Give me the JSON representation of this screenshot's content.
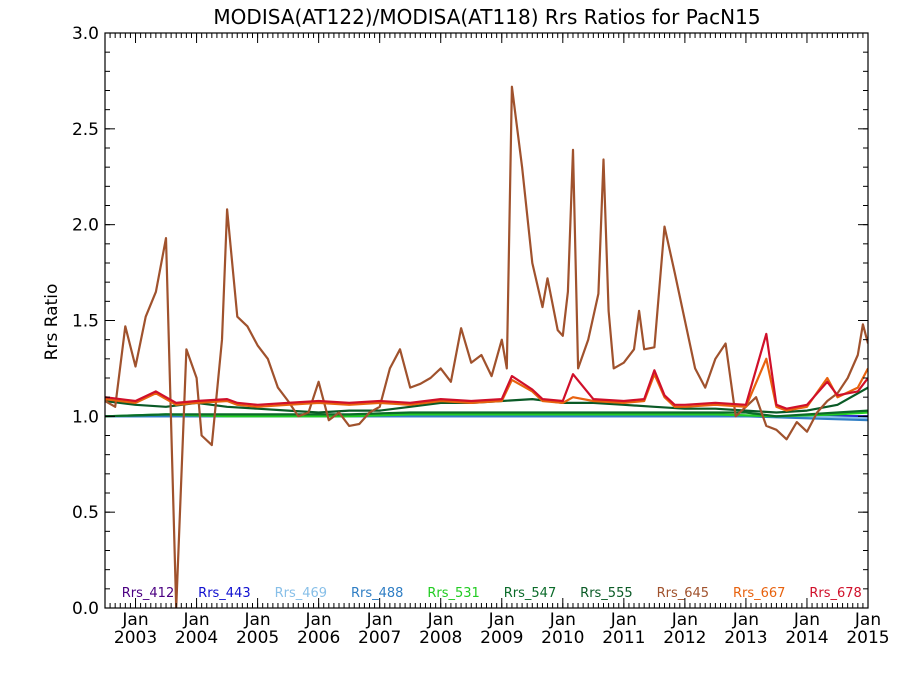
{
  "chart_data": {
    "type": "line",
    "title": "MODISA(AT122)/MODISA(AT118)  Rrs Ratios for PacN15",
    "xlabel": "",
    "ylabel": "Rrs Ratio",
    "ylim": [
      0.0,
      3.0
    ],
    "xlim": [
      "2002-07-01",
      "2015-01-01"
    ],
    "yticks": [
      "0.0",
      "0.5",
      "1.0",
      "1.5",
      "2.0",
      "2.5",
      "3.0"
    ],
    "xticks": [
      {
        "top": "Jan",
        "bottom": "2003"
      },
      {
        "top": "Jan",
        "bottom": "2004"
      },
      {
        "top": "Jan",
        "bottom": "2005"
      },
      {
        "top": "Jan",
        "bottom": "2006"
      },
      {
        "top": "Jan",
        "bottom": "2007"
      },
      {
        "top": "Jan",
        "bottom": "2008"
      },
      {
        "top": "Jan",
        "bottom": "2009"
      },
      {
        "top": "Jan",
        "bottom": "2010"
      },
      {
        "top": "Jan",
        "bottom": "2011"
      },
      {
        "top": "Jan",
        "bottom": "2012"
      },
      {
        "top": "Jan",
        "bottom": "2013"
      },
      {
        "top": "Jan",
        "bottom": "2014"
      },
      {
        "top": "Jan",
        "bottom": "2015"
      }
    ],
    "grid": false,
    "legend_position": "bottom, inside plot",
    "series": [
      {
        "name": "Rrs_412",
        "color": "#4b0082",
        "points": [
          [
            "2002-07",
            1.0
          ],
          [
            "2005-01",
            1.0
          ],
          [
            "2008-01",
            1.0
          ],
          [
            "2011-01",
            1.0
          ],
          [
            "2013-01",
            1.0
          ],
          [
            "2014-01",
            1.0
          ],
          [
            "2015-01",
            1.0
          ]
        ]
      },
      {
        "name": "Rrs_443",
        "color": "#1010d0",
        "points": [
          [
            "2002-07",
            1.0
          ],
          [
            "2005-01",
            1.0
          ],
          [
            "2008-01",
            1.0
          ],
          [
            "2011-01",
            1.0
          ],
          [
            "2013-01",
            1.0
          ],
          [
            "2014-01",
            1.0
          ],
          [
            "2015-01",
            1.0
          ]
        ]
      },
      {
        "name": "Rrs_469",
        "color": "#87bfe8",
        "points": [
          [
            "2002-07",
            1.0
          ],
          [
            "2006-01",
            1.0
          ],
          [
            "2010-01",
            1.0
          ],
          [
            "2012-01",
            1.0
          ],
          [
            "2013-01",
            1.0
          ],
          [
            "2014-01",
            1.0
          ],
          [
            "2015-01",
            0.99
          ]
        ]
      },
      {
        "name": "Rrs_488",
        "color": "#2f7ec4",
        "points": [
          [
            "2002-07",
            1.0
          ],
          [
            "2006-01",
            1.0
          ],
          [
            "2010-01",
            1.0
          ],
          [
            "2012-01",
            1.0
          ],
          [
            "2013-01",
            1.0
          ],
          [
            "2014-01",
            0.99
          ],
          [
            "2015-01",
            0.98
          ]
        ]
      },
      {
        "name": "Rrs_531",
        "color": "#22cc22",
        "points": [
          [
            "2002-07",
            1.0
          ],
          [
            "2003-07",
            1.01
          ],
          [
            "2004-07",
            1.0
          ],
          [
            "2005-07",
            1.0
          ],
          [
            "2006-07",
            1.0
          ],
          [
            "2007-07",
            1.01
          ],
          [
            "2008-07",
            1.01
          ],
          [
            "2009-07",
            1.01
          ],
          [
            "2010-07",
            1.01
          ],
          [
            "2011-07",
            1.01
          ],
          [
            "2012-07",
            1.01
          ],
          [
            "2013-07",
            1.0
          ],
          [
            "2014-07",
            1.01
          ],
          [
            "2015-01",
            1.02
          ]
        ]
      },
      {
        "name": "Rrs_547",
        "color": "#0b6b2a",
        "points": [
          [
            "2002-07",
            1.0
          ],
          [
            "2003-07",
            1.01
          ],
          [
            "2004-07",
            1.01
          ],
          [
            "2005-07",
            1.01
          ],
          [
            "2006-07",
            1.01
          ],
          [
            "2007-07",
            1.02
          ],
          [
            "2008-07",
            1.02
          ],
          [
            "2009-07",
            1.02
          ],
          [
            "2010-07",
            1.02
          ],
          [
            "2011-07",
            1.02
          ],
          [
            "2012-07",
            1.02
          ],
          [
            "2013-01",
            1.02
          ],
          [
            "2013-07",
            1.0
          ],
          [
            "2014-07",
            1.02
          ],
          [
            "2015-01",
            1.03
          ]
        ]
      },
      {
        "name": "Rrs_555",
        "color": "#0a5a26",
        "points": [
          [
            "2002-07",
            1.08
          ],
          [
            "2003-01",
            1.06
          ],
          [
            "2003-07",
            1.05
          ],
          [
            "2004-01",
            1.07
          ],
          [
            "2004-07",
            1.05
          ],
          [
            "2005-01",
            1.04
          ],
          [
            "2005-07",
            1.03
          ],
          [
            "2006-01",
            1.02
          ],
          [
            "2006-07",
            1.03
          ],
          [
            "2007-01",
            1.03
          ],
          [
            "2007-07",
            1.05
          ],
          [
            "2008-01",
            1.07
          ],
          [
            "2008-07",
            1.07
          ],
          [
            "2009-01",
            1.08
          ],
          [
            "2009-07",
            1.09
          ],
          [
            "2010-01",
            1.07
          ],
          [
            "2010-07",
            1.07
          ],
          [
            "2011-01",
            1.06
          ],
          [
            "2011-07",
            1.05
          ],
          [
            "2012-01",
            1.04
          ],
          [
            "2012-07",
            1.04
          ],
          [
            "2013-01",
            1.03
          ],
          [
            "2013-07",
            1.02
          ],
          [
            "2014-01",
            1.03
          ],
          [
            "2014-07",
            1.06
          ],
          [
            "2015-01",
            1.15
          ]
        ]
      },
      {
        "name": "Rrs_645",
        "color": "#a0522d",
        "points": [
          [
            "2002-07",
            1.08
          ],
          [
            "2002-09",
            1.05
          ],
          [
            "2002-11",
            1.47
          ],
          [
            "2003-01",
            1.26
          ],
          [
            "2003-03",
            1.52
          ],
          [
            "2003-05",
            1.65
          ],
          [
            "2003-07",
            1.93
          ],
          [
            "2003-09",
            0.0
          ],
          [
            "2003-11",
            1.35
          ],
          [
            "2004-01",
            1.2
          ],
          [
            "2004-02",
            0.9
          ],
          [
            "2004-04",
            0.85
          ],
          [
            "2004-06",
            1.4
          ],
          [
            "2004-07",
            2.08
          ],
          [
            "2004-09",
            1.52
          ],
          [
            "2004-11",
            1.47
          ],
          [
            "2005-01",
            1.37
          ],
          [
            "2005-03",
            1.3
          ],
          [
            "2005-05",
            1.15
          ],
          [
            "2005-07",
            1.08
          ],
          [
            "2005-09",
            1.0
          ],
          [
            "2005-11",
            1.02
          ],
          [
            "2006-01",
            1.18
          ],
          [
            "2006-03",
            0.98
          ],
          [
            "2006-05",
            1.02
          ],
          [
            "2006-07",
            0.95
          ],
          [
            "2006-09",
            0.96
          ],
          [
            "2006-11",
            1.02
          ],
          [
            "2007-01",
            1.05
          ],
          [
            "2007-03",
            1.25
          ],
          [
            "2007-05",
            1.35
          ],
          [
            "2007-07",
            1.15
          ],
          [
            "2007-09",
            1.17
          ],
          [
            "2007-11",
            1.2
          ],
          [
            "2008-01",
            1.25
          ],
          [
            "2008-03",
            1.18
          ],
          [
            "2008-05",
            1.46
          ],
          [
            "2008-07",
            1.28
          ],
          [
            "2008-09",
            1.32
          ],
          [
            "2008-11",
            1.21
          ],
          [
            "2009-01",
            1.4
          ],
          [
            "2009-02",
            1.25
          ],
          [
            "2009-03",
            2.72
          ],
          [
            "2009-05",
            2.3
          ],
          [
            "2009-07",
            1.8
          ],
          [
            "2009-09",
            1.57
          ],
          [
            "2009-10",
            1.72
          ],
          [
            "2009-12",
            1.45
          ],
          [
            "2010-01",
            1.42
          ],
          [
            "2010-02",
            1.65
          ],
          [
            "2010-03",
            2.39
          ],
          [
            "2010-04",
            1.25
          ],
          [
            "2010-06",
            1.4
          ],
          [
            "2010-08",
            1.64
          ],
          [
            "2010-09",
            2.34
          ],
          [
            "2010-10",
            1.55
          ],
          [
            "2010-11",
            1.25
          ],
          [
            "2011-01",
            1.28
          ],
          [
            "2011-03",
            1.35
          ],
          [
            "2011-04",
            1.55
          ],
          [
            "2011-05",
            1.35
          ],
          [
            "2011-07",
            1.36
          ],
          [
            "2011-09",
            1.99
          ],
          [
            "2011-11",
            1.75
          ],
          [
            "2012-01",
            1.5
          ],
          [
            "2012-03",
            1.25
          ],
          [
            "2012-05",
            1.15
          ],
          [
            "2012-07",
            1.3
          ],
          [
            "2012-09",
            1.38
          ],
          [
            "2012-11",
            1.0
          ],
          [
            "2013-01",
            1.05
          ],
          [
            "2013-03",
            1.1
          ],
          [
            "2013-05",
            0.95
          ],
          [
            "2013-07",
            0.93
          ],
          [
            "2013-09",
            0.88
          ],
          [
            "2013-11",
            0.97
          ],
          [
            "2014-01",
            0.92
          ],
          [
            "2014-03",
            1.02
          ],
          [
            "2014-05",
            1.08
          ],
          [
            "2014-07",
            1.12
          ],
          [
            "2014-09",
            1.2
          ],
          [
            "2014-11",
            1.32
          ],
          [
            "2014-12",
            1.48
          ],
          [
            "2015-01",
            1.38
          ]
        ]
      },
      {
        "name": "Rrs_667",
        "color": "#e8620e",
        "points": [
          [
            "2002-07",
            1.09
          ],
          [
            "2003-01",
            1.07
          ],
          [
            "2003-05",
            1.12
          ],
          [
            "2003-07",
            1.09
          ],
          [
            "2003-09",
            1.06
          ],
          [
            "2004-01",
            1.07
          ],
          [
            "2004-07",
            1.08
          ],
          [
            "2004-09",
            1.06
          ],
          [
            "2005-01",
            1.05
          ],
          [
            "2005-07",
            1.06
          ],
          [
            "2006-01",
            1.07
          ],
          [
            "2006-07",
            1.06
          ],
          [
            "2007-01",
            1.07
          ],
          [
            "2007-07",
            1.06
          ],
          [
            "2008-01",
            1.08
          ],
          [
            "2008-07",
            1.07
          ],
          [
            "2009-01",
            1.08
          ],
          [
            "2009-03",
            1.19
          ],
          [
            "2009-07",
            1.13
          ],
          [
            "2009-09",
            1.08
          ],
          [
            "2010-01",
            1.07
          ],
          [
            "2010-03",
            1.1
          ],
          [
            "2010-07",
            1.08
          ],
          [
            "2011-01",
            1.07
          ],
          [
            "2011-05",
            1.08
          ],
          [
            "2011-07",
            1.22
          ],
          [
            "2011-09",
            1.1
          ],
          [
            "2011-11",
            1.05
          ],
          [
            "2012-01",
            1.05
          ],
          [
            "2012-07",
            1.06
          ],
          [
            "2013-01",
            1.05
          ],
          [
            "2013-05",
            1.3
          ],
          [
            "2013-07",
            1.05
          ],
          [
            "2013-09",
            1.03
          ],
          [
            "2014-01",
            1.05
          ],
          [
            "2014-05",
            1.2
          ],
          [
            "2014-07",
            1.1
          ],
          [
            "2014-11",
            1.15
          ],
          [
            "2015-01",
            1.25
          ]
        ]
      },
      {
        "name": "Rrs_678",
        "color": "#d0102a",
        "points": [
          [
            "2002-07",
            1.1
          ],
          [
            "2003-01",
            1.08
          ],
          [
            "2003-05",
            1.13
          ],
          [
            "2003-07",
            1.1
          ],
          [
            "2003-09",
            1.07
          ],
          [
            "2004-01",
            1.08
          ],
          [
            "2004-07",
            1.09
          ],
          [
            "2004-09",
            1.07
          ],
          [
            "2005-01",
            1.06
          ],
          [
            "2005-07",
            1.07
          ],
          [
            "2006-01",
            1.08
          ],
          [
            "2006-07",
            1.07
          ],
          [
            "2007-01",
            1.08
          ],
          [
            "2007-07",
            1.07
          ],
          [
            "2008-01",
            1.09
          ],
          [
            "2008-07",
            1.08
          ],
          [
            "2009-01",
            1.09
          ],
          [
            "2009-03",
            1.21
          ],
          [
            "2009-07",
            1.14
          ],
          [
            "2009-09",
            1.09
          ],
          [
            "2010-01",
            1.08
          ],
          [
            "2010-03",
            1.22
          ],
          [
            "2010-07",
            1.09
          ],
          [
            "2011-01",
            1.08
          ],
          [
            "2011-05",
            1.09
          ],
          [
            "2011-07",
            1.24
          ],
          [
            "2011-09",
            1.11
          ],
          [
            "2011-11",
            1.06
          ],
          [
            "2012-01",
            1.06
          ],
          [
            "2012-07",
            1.07
          ],
          [
            "2013-01",
            1.06
          ],
          [
            "2013-05",
            1.43
          ],
          [
            "2013-07",
            1.06
          ],
          [
            "2013-09",
            1.04
          ],
          [
            "2014-01",
            1.06
          ],
          [
            "2014-05",
            1.18
          ],
          [
            "2014-07",
            1.11
          ],
          [
            "2014-11",
            1.13
          ],
          [
            "2015-01",
            1.2
          ]
        ]
      }
    ]
  }
}
